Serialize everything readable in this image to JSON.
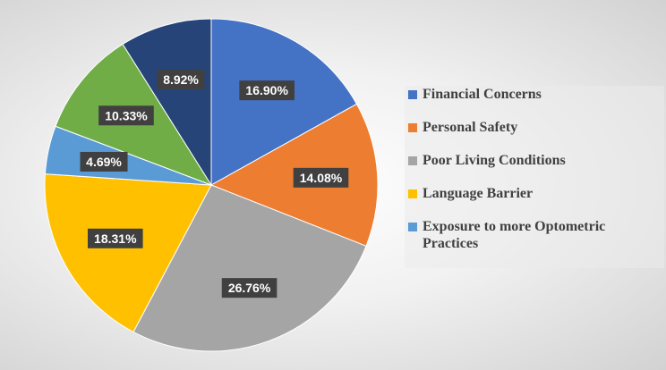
{
  "chart_data": {
    "type": "pie",
    "categories": [
      "Financial Concerns",
      "Personal Safety",
      "Poor Living Conditions",
      "Language Barrier",
      "Exposure to more Optometric Practices",
      "",
      ""
    ],
    "values": [
      16.9,
      14.08,
      26.76,
      18.31,
      4.69,
      10.33,
      8.92
    ],
    "labels": [
      "16.90%",
      "14.08%",
      "26.76%",
      "18.31%",
      "4.69%",
      "10.33%",
      "8.92%"
    ],
    "colors": [
      "#4472C4",
      "#ED7D31",
      "#A5A5A5",
      "#FFC000",
      "#5B9BD5",
      "#70AD47",
      "#264478"
    ],
    "legend": [
      {
        "name": "Financial Concerns",
        "color": "#4472C4"
      },
      {
        "name": "Personal Safety",
        "color": "#ED7D31"
      },
      {
        "name": "Poor Living Conditions",
        "color": "#A5A5A5"
      },
      {
        "name": "Language Barrier",
        "color": "#FFC000"
      },
      {
        "name": "Exposure to more Optometric Practices",
        "color": "#5B9BD5"
      }
    ],
    "legend_position": "right"
  }
}
